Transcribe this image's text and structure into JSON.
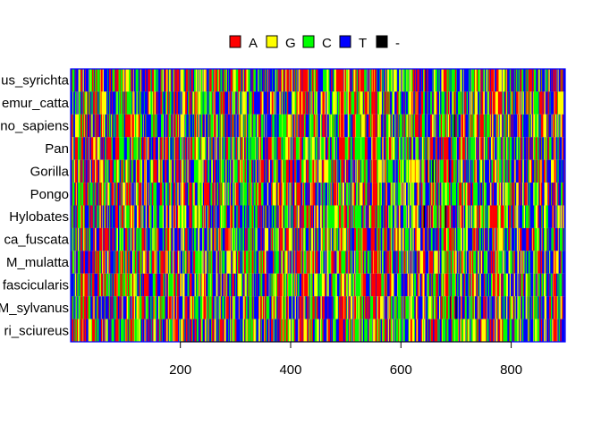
{
  "chart_data": {
    "type": "heatmap",
    "title": "",
    "xlabel": "",
    "ylabel": "",
    "xlim": [
      1,
      898
    ],
    "x_ticks": [
      200,
      400,
      600,
      800
    ],
    "x_tick_labels": [
      "200",
      "400",
      "600",
      "800"
    ],
    "legend_position": "top",
    "legend": [
      {
        "label": "A",
        "color": "#ff0000"
      },
      {
        "label": "G",
        "color": "#ffff00"
      },
      {
        "label": "C",
        "color": "#00ff00"
      },
      {
        "label": "T",
        "color": "#0000ff"
      },
      {
        "label": "-",
        "color": "#000000"
      }
    ],
    "rows": [
      "us_syrichta",
      "emur_catta",
      "no_sapiens",
      "Pan",
      "Gorilla",
      "Pongo",
      "Hylobates",
      "ca_fuscata",
      "M_mulatta",
      "fascicularis",
      "M_sylvanus",
      "ri_sciureus"
    ],
    "columns_per_row": 898,
    "frame_color": "#0000ff"
  }
}
